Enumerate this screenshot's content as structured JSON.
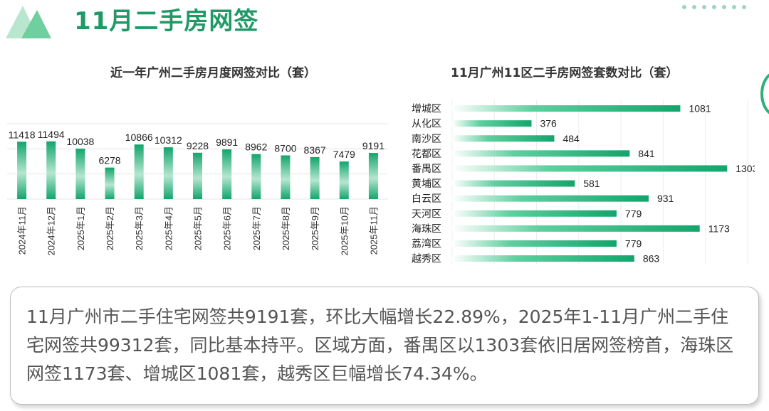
{
  "header": {
    "title": "11月二手房网签"
  },
  "colors": {
    "accent": "#1f9a66",
    "bar_dark": "#12a56c",
    "bar_light": "#b6e6d0"
  },
  "summary": {
    "text": "11月广州市二手住宅网签共9191套，环比大幅增长22.89%，2025年1-11月广州二手住宅网签共99312套，同比基本持平。区域方面，番禺区以1303套依旧居网签榜首，海珠区网签1173套、增城区1081套，越秀区巨幅增长74.34%。"
  },
  "chart_data": [
    {
      "type": "bar",
      "orientation": "vertical",
      "title": "近一年广州二手房月度网签对比（套）",
      "categories": [
        "2024年11月",
        "2024年12月",
        "2025年1月",
        "2025年2月",
        "2025年3月",
        "2025年4月",
        "2025年5月",
        "2025年6月",
        "2025年7月",
        "2025年8月",
        "2025年9月",
        "2025年10月",
        "2025年11月"
      ],
      "values": [
        11418,
        11494,
        10038,
        6278,
        10866,
        10312,
        9228,
        9891,
        8962,
        8700,
        8367,
        7479,
        9191
      ],
      "ylim": [
        0,
        15000
      ],
      "grid": true,
      "xlabel": "",
      "ylabel": ""
    },
    {
      "type": "bar",
      "orientation": "horizontal",
      "title": "11月广州11区二手房网签套数对比（套）",
      "categories": [
        "增城区",
        "从化区",
        "南沙区",
        "花都区",
        "番禺区",
        "黄埔区",
        "白云区",
        "天河区",
        "海珠区",
        "荔湾区",
        "越秀区"
      ],
      "values": [
        1081,
        376,
        484,
        841,
        1303,
        581,
        931,
        779,
        1173,
        779,
        863
      ],
      "xlim": [
        0,
        1400
      ],
      "grid": true,
      "xlabel": "",
      "ylabel": ""
    }
  ]
}
